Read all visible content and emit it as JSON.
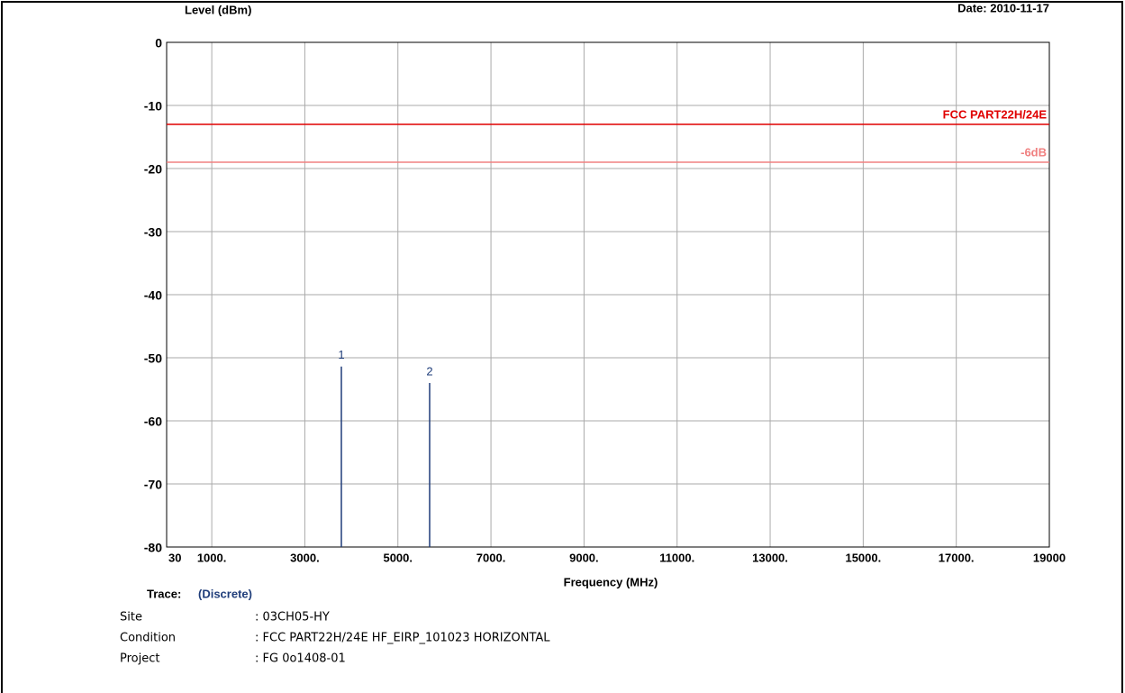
{
  "chart_data": {
    "type": "stem",
    "title": "Level (dBm)",
    "date": "Date: 2010-11-17",
    "x_label": "Frequency (MHz)",
    "xlim": [
      30,
      19000
    ],
    "xticks": [
      30,
      {
        "value": 1000,
        "label": "1000."
      },
      {
        "value": 3000,
        "label": "3000."
      },
      {
        "value": 5000,
        "label": "5000."
      },
      {
        "value": 7000,
        "label": "7000."
      },
      {
        "value": 9000,
        "label": "9000."
      },
      {
        "value": 11000,
        "label": "11000."
      },
      {
        "value": 13000,
        "label": "13000."
      },
      {
        "value": 15000,
        "label": "15000."
      },
      {
        "value": 17000,
        "label": "17000."
      },
      19000
    ],
    "ylim": [
      -80,
      0
    ],
    "yticks": [
      0,
      -10,
      -20,
      -30,
      -40,
      -50,
      -60,
      -70,
      -80
    ],
    "grid": true,
    "limit_lines": [
      {
        "name": "FCC PART22H/24E",
        "value": -13,
        "color": "#e00000"
      },
      {
        "name": "-6dB",
        "value": -19,
        "color": "#f08080"
      }
    ],
    "markers": {
      "labels": [
        "1",
        "2"
      ],
      "x": [
        3785,
        5682
      ],
      "values": [
        -51.4,
        -54.0
      ],
      "color": "#1f3d7a"
    }
  },
  "info": {
    "trace_label": "Trace:",
    "trace_value": "(Discrete)",
    "rows": [
      [
        "Site",
        ": 03CH05-HY"
      ],
      [
        "Condition",
        ": FCC PART22H/24E HF_EIRP_101023 HORIZONTAL"
      ],
      [
        "Project",
        ": FG 0o1408-01"
      ]
    ]
  }
}
